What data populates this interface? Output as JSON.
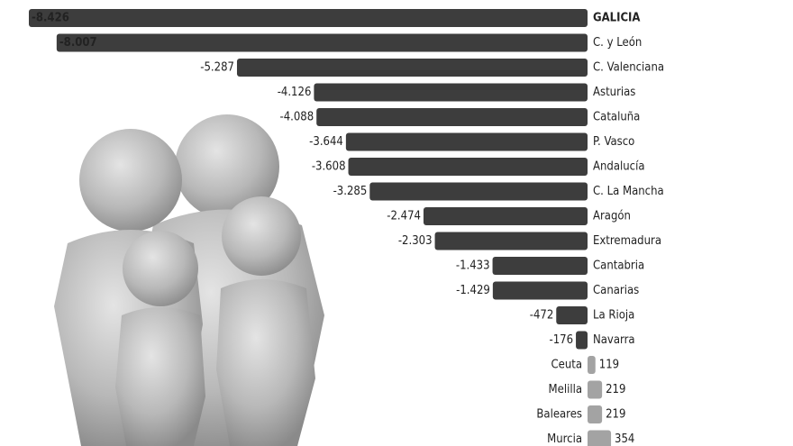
{
  "chart_data": {
    "type": "bar",
    "orientation": "horizontal",
    "categories": [
      "GALICIA",
      "C. y León",
      "C. Valenciana",
      "Asturias",
      "Cataluña",
      "P. Vasco",
      "Andalucía",
      "C. La Mancha",
      "Aragón",
      "Extremadura",
      "Cantabria",
      "Canarias",
      "La Rioja",
      "Navarra",
      "Ceuta",
      "Melilla",
      "Baleares",
      "Murcia"
    ],
    "values": [
      -8426,
      -8007,
      -5287,
      -4126,
      -4088,
      -3644,
      -3608,
      -3285,
      -2474,
      -2303,
      -1433,
      -1429,
      -472,
      -176,
      119,
      219,
      219,
      354
    ],
    "value_labels": [
      "-8.426",
      "-8.007",
      "-5.287",
      "-4.126",
      "-4.088",
      "-3.644",
      "-3.608",
      "-3.285",
      "-2.474",
      "-2.303",
      "-1.433",
      "-1.429",
      "-472",
      "-176",
      "119",
      "219",
      "219",
      "354"
    ],
    "colors": {
      "negative": "#3d3d3d",
      "positive": "#a3a3a3"
    }
  }
}
